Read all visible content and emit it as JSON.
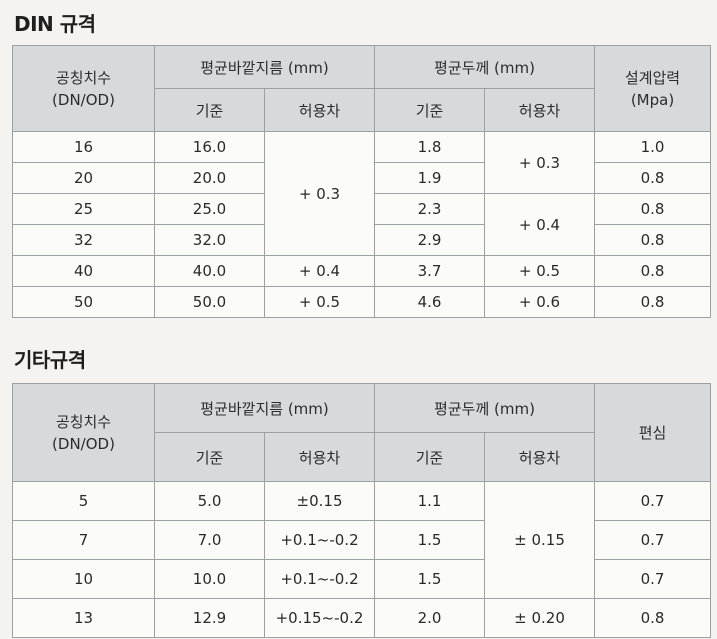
{
  "din": {
    "title": "DIN 규격",
    "headers": {
      "size_line1": "공칭치수",
      "size_line2": "(DN/OD)",
      "outer_diameter": "평균바깥지름 (mm)",
      "wall_thickness": "평균두께 (mm)",
      "pressure_line1": "설계압력",
      "pressure_line2": "(Mpa)",
      "standard_od": "기준",
      "tolerance_od": "허용차",
      "standard_wt": "기준",
      "tolerance_wt": "허용차"
    },
    "rows": [
      {
        "size": "16",
        "od": "16.0",
        "od_tol": "+ 0.3",
        "wt": "1.8",
        "wt_tol": "+ 0.3",
        "pressure": "1.0"
      },
      {
        "size": "20",
        "od": "20.0",
        "od_tol": "",
        "wt": "1.9",
        "wt_tol": "",
        "pressure": "0.8"
      },
      {
        "size": "25",
        "od": "25.0",
        "od_tol": "",
        "wt": "2.3",
        "wt_tol": "+ 0.4",
        "pressure": "0.8"
      },
      {
        "size": "32",
        "od": "32.0",
        "od_tol": "",
        "wt": "2.9",
        "wt_tol": "",
        "pressure": "0.8"
      },
      {
        "size": "40",
        "od": "40.0",
        "od_tol": "+ 0.4",
        "wt": "3.7",
        "wt_tol": "+ 0.5",
        "pressure": "0.8"
      },
      {
        "size": "50",
        "od": "50.0",
        "od_tol": "+ 0.5",
        "wt": "4.6",
        "wt_tol": "+ 0.6",
        "pressure": "0.8"
      }
    ]
  },
  "other": {
    "title": "기타규격",
    "headers": {
      "size_line1": "공칭치수",
      "size_line2": "(DN/OD)",
      "outer_diameter": "평균바깥지름 (mm)",
      "wall_thickness": "평균두께 (mm)",
      "eccentricity": "편심",
      "standard_od": "기준",
      "tolerance_od": "허용차",
      "standard_wt": "기준",
      "tolerance_wt": "허용차"
    },
    "rows": [
      {
        "size": "5",
        "od": "5.0",
        "od_tol": "±0.15",
        "wt": "1.1",
        "wt_tol": "± 0.15",
        "ecc": "0.7"
      },
      {
        "size": "7",
        "od": "7.0",
        "od_tol": "+0.1~-0.2",
        "wt": "1.5",
        "wt_tol": "",
        "ecc": "0.7"
      },
      {
        "size": "10",
        "od": "10.0",
        "od_tol": "+0.1~-0.2",
        "wt": "1.5",
        "wt_tol": "",
        "ecc": "0.7"
      },
      {
        "size": "13",
        "od": "12.9",
        "od_tol": "+0.15~-0.2",
        "wt": "2.0",
        "wt_tol": "± 0.20",
        "ecc": "0.8"
      }
    ]
  }
}
